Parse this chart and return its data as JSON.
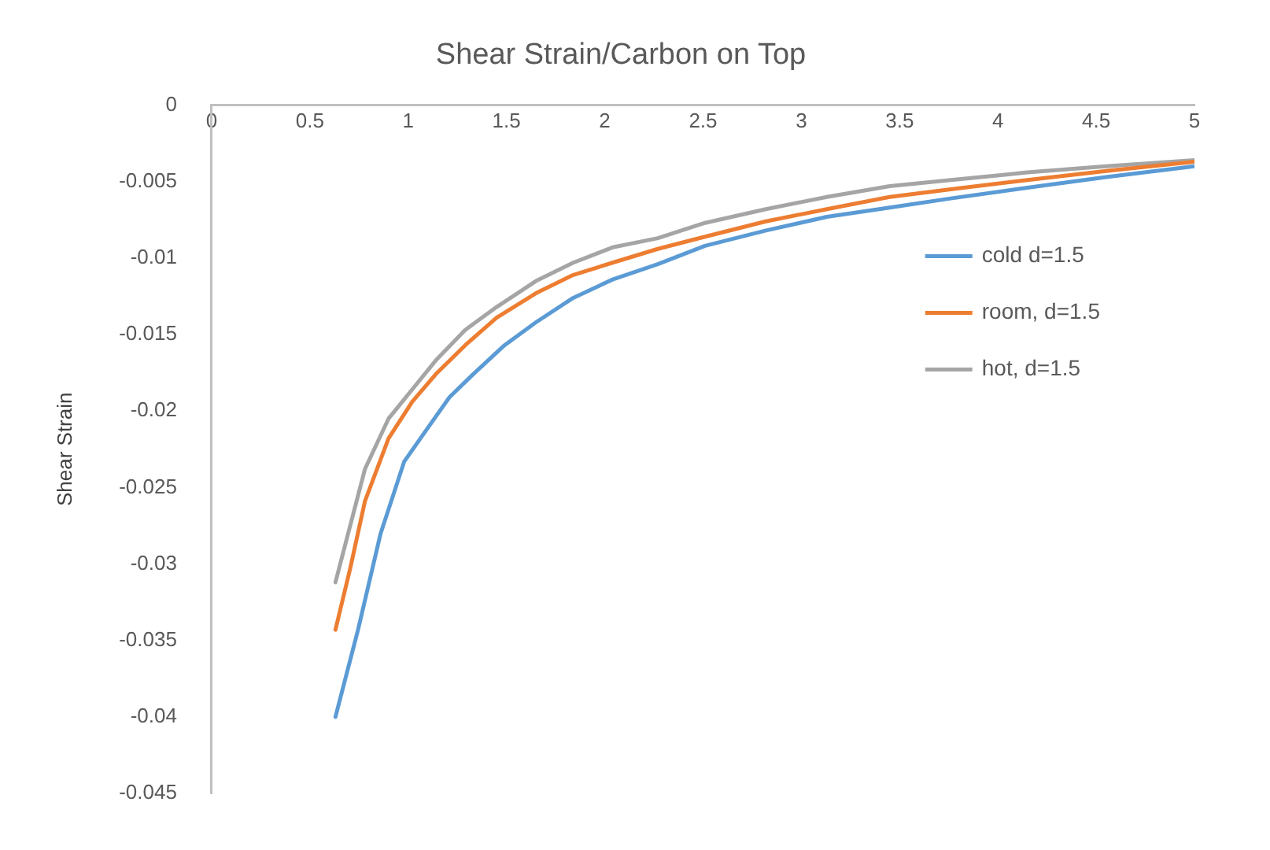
{
  "chart_data": {
    "type": "line",
    "title": "Shear Strain/Carbon on Top",
    "ylabel": "Shear Strain",
    "xlim": [
      0,
      5
    ],
    "xticks": [
      0,
      0.5,
      1,
      1.5,
      2,
      2.5,
      3,
      3.5,
      4,
      4.5,
      5
    ],
    "ylim": [
      -0.045,
      0
    ],
    "yticks": [
      0,
      -0.005,
      -0.01,
      -0.015,
      -0.02,
      -0.025,
      -0.03,
      -0.035,
      -0.04,
      -0.045
    ],
    "grid": false,
    "legend": "right",
    "marker": "none",
    "line_style": "solid",
    "series": [
      {
        "name": "cold d=1.5",
        "color": "#5b9bd5",
        "x": [
          0.63,
          0.745,
          0.86,
          0.98,
          1.1,
          1.21,
          1.33,
          1.49,
          1.65,
          1.84,
          2.04,
          2.27,
          2.51,
          2.82,
          3.13,
          3.45,
          3.76,
          4.15,
          4.55,
          5
        ],
        "values": [
          -0.04,
          -0.0343,
          -0.028,
          -0.0233,
          -0.0211,
          -0.0191,
          -0.0176,
          -0.0157,
          -0.0142,
          -0.0126,
          -0.0114,
          -0.0104,
          -0.0092,
          -0.0082,
          -0.0073,
          -0.0067,
          -0.0061,
          -0.0054,
          -0.0047,
          -0.004
        ]
      },
      {
        "name": "room, d=1.5",
        "color": "#ed7d31",
        "x": [
          0.63,
          0.705,
          0.78,
          0.9,
          1.02,
          1.14,
          1.29,
          1.45,
          1.65,
          1.84,
          2.04,
          2.27,
          2.51,
          2.82,
          3.13,
          3.45,
          3.76,
          4.15,
          4.55,
          5
        ],
        "values": [
          -0.0343,
          -0.0303,
          -0.0259,
          -0.0218,
          -0.0194,
          -0.0176,
          -0.0157,
          -0.0139,
          -0.0123,
          -0.0111,
          -0.0103,
          -0.0094,
          -0.0086,
          -0.0076,
          -0.0068,
          -0.006,
          -0.0055,
          -0.0049,
          -0.0043,
          -0.0037
        ]
      },
      {
        "name": "hot, d=1.5",
        "color": "#a5a5a5",
        "x": [
          0.63,
          0.705,
          0.78,
          0.9,
          1.02,
          1.14,
          1.29,
          1.45,
          1.65,
          1.84,
          2.04,
          2.27,
          2.51,
          2.82,
          3.13,
          3.45,
          3.76,
          4.15,
          4.55,
          5
        ],
        "values": [
          -0.0312,
          -0.0275,
          -0.0238,
          -0.0205,
          -0.0186,
          -0.0167,
          -0.0147,
          -0.0132,
          -0.0115,
          -0.0103,
          -0.0093,
          -0.0087,
          -0.0077,
          -0.0068,
          -0.006,
          -0.0053,
          -0.0049,
          -0.0044,
          -0.004,
          -0.0036
        ]
      }
    ]
  }
}
